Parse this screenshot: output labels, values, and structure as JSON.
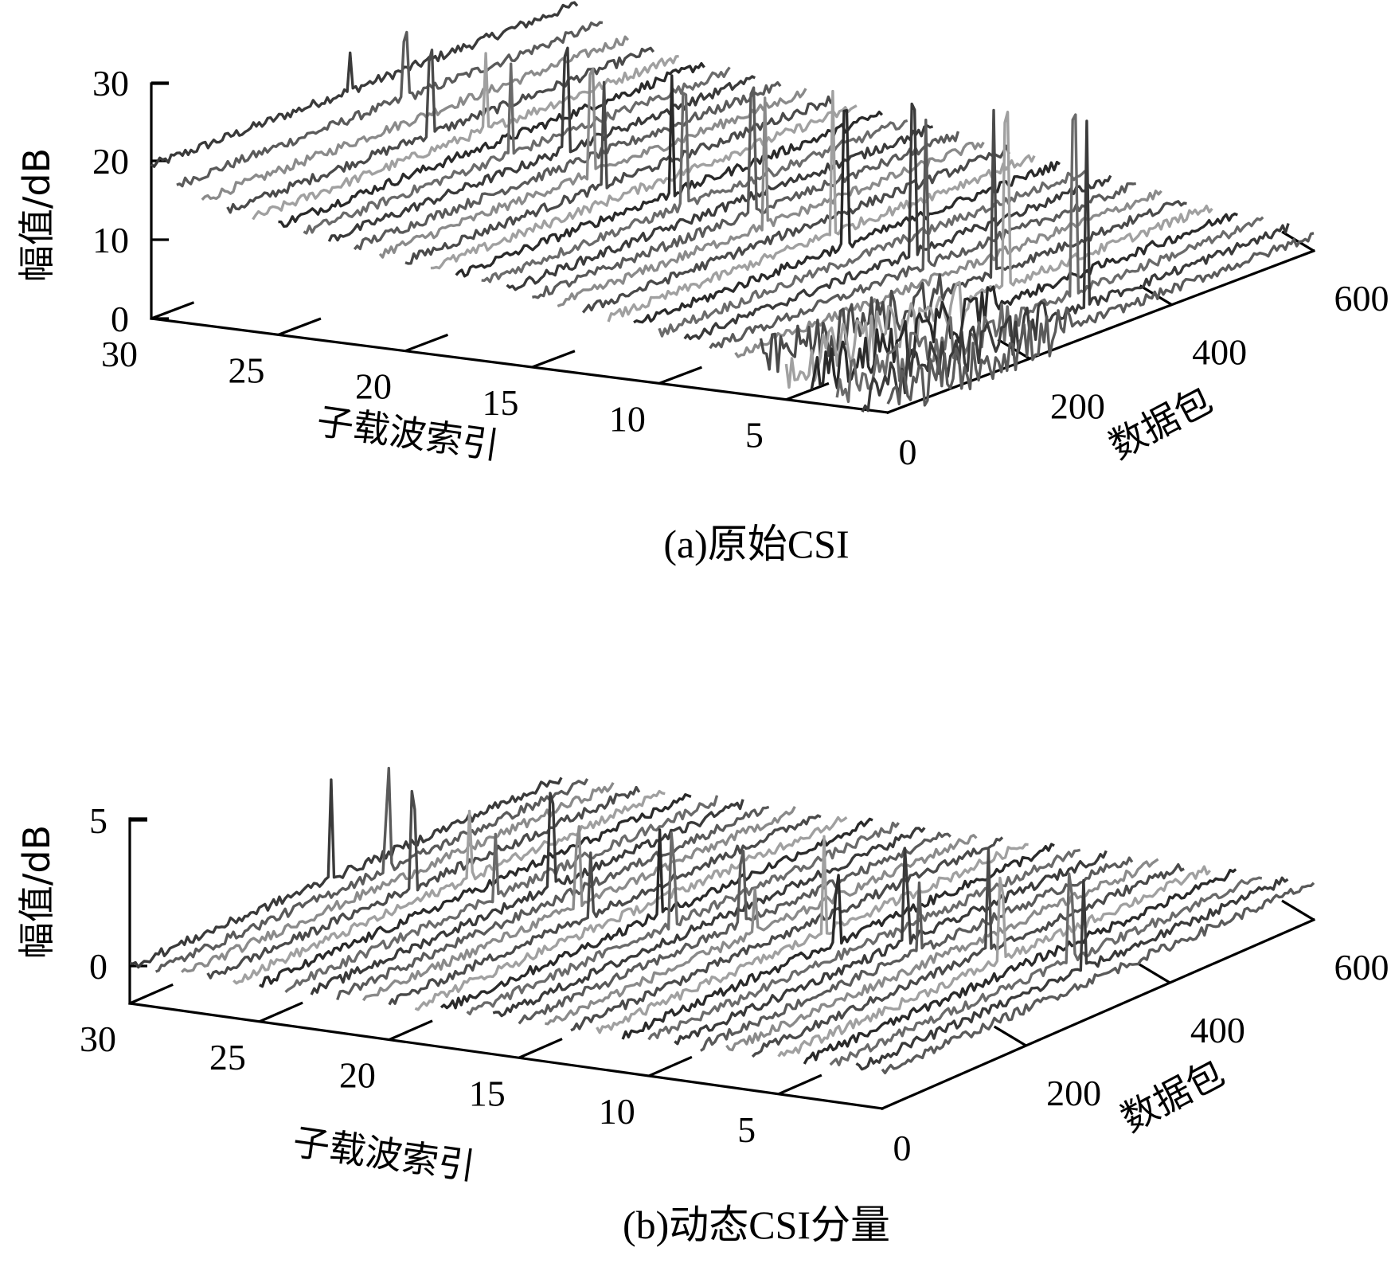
{
  "chart_data": [
    {
      "type": "3d-waterfall-line",
      "title": "(a)原始CSI",
      "xlabel": "子载波索引",
      "ylabel": "数据包",
      "zlabel": "幅值/dB",
      "x_ticks": [
        "30",
        "25",
        "20",
        "15",
        "10",
        "5"
      ],
      "y_ticks": [
        "0",
        "200",
        "400",
        "600"
      ],
      "z_ticks": [
        "0",
        "10",
        "20",
        "30"
      ],
      "xlim": [
        30,
        1
      ],
      "ylim": [
        0,
        600
      ],
      "zlim": [
        0,
        30
      ],
      "series_count": 30,
      "baseline_levels_dB": [
        19.5,
        17.5,
        16,
        15,
        14.5,
        14,
        13.5,
        13,
        12.5,
        12,
        11.5,
        11,
        10.5,
        10,
        9.5,
        9,
        8.5,
        8,
        7.5,
        7,
        6.5,
        6,
        5.5,
        5,
        4.5,
        4,
        3.5,
        3,
        2.5,
        2
      ],
      "spike_level_dB": 26,
      "spike_packet_range": [
        280,
        340
      ],
      "noise_dB": 0.6,
      "colors": [
        "#3a3a3a",
        "#5a5a5a",
        "#8a8a8a",
        "#4a4a4a",
        "#a0a0a0",
        "#2a2a2a",
        "#6a6a6a"
      ]
    },
    {
      "type": "3d-waterfall-line",
      "title": "(b)动态CSI分量",
      "xlabel": "子载波索引",
      "ylabel": "数据包",
      "zlabel": "幅值/dB",
      "x_ticks": [
        "30",
        "25",
        "20",
        "15",
        "10",
        "5"
      ],
      "y_ticks": [
        "0",
        "200",
        "400",
        "600"
      ],
      "z_ticks": [
        "0",
        "5"
      ],
      "xlim": [
        30,
        1
      ],
      "ylim": [
        0,
        600
      ],
      "zlim": [
        -1,
        5
      ],
      "series_count": 30,
      "baseline_levels_dB": [
        0.2,
        0.2,
        0.2,
        0.2,
        0.2,
        0.2,
        0.2,
        0.2,
        0.2,
        0.2,
        0.2,
        0.2,
        0.2,
        0.2,
        0.2,
        0.2,
        0.2,
        0.2,
        0.2,
        0.2,
        0.2,
        0.2,
        0.2,
        0.2,
        0.2,
        0.2,
        0.2,
        0.2,
        0.2,
        0.2
      ],
      "spike_level_dB": 3.5,
      "spike_packet_range": [
        280,
        340
      ],
      "noise_dB": 0.15,
      "colors": [
        "#3a3a3a",
        "#5a5a5a",
        "#8a8a8a",
        "#4a4a4a",
        "#a0a0a0",
        "#2a2a2a",
        "#6a6a6a"
      ]
    }
  ]
}
